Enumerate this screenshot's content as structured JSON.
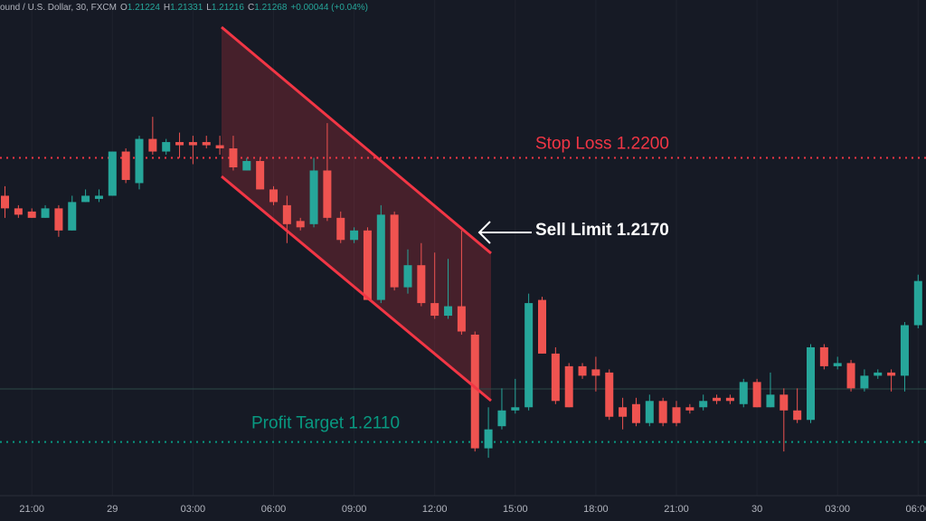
{
  "chart_data": {
    "type": "candlestick",
    "header": {
      "symbol": "ound / U.S. Dollar, 30, FXCM",
      "ohlc": [
        {
          "label": "O",
          "value": 1.21224
        },
        {
          "label": "H",
          "value": 1.21331
        },
        {
          "label": "L",
          "value": 1.21216
        },
        {
          "label": "C",
          "value": 1.21268
        }
      ],
      "change": "+0.00044 (+0.04%)"
    },
    "categories": [
      null,
      null,
      "21:00",
      null,
      null,
      null,
      null,
      null,
      "29",
      null,
      null,
      null,
      null,
      null,
      "03:00",
      null,
      null,
      null,
      null,
      null,
      "06:00",
      null,
      null,
      null,
      null,
      null,
      "09:00",
      null,
      null,
      null,
      null,
      null,
      "12:00",
      null,
      null,
      null,
      null,
      null,
      "15:00",
      null,
      null,
      null,
      null,
      null,
      "18:00",
      null,
      null,
      null,
      null,
      null,
      "21:00",
      null,
      null,
      null,
      null,
      null,
      "30",
      null,
      null,
      null,
      null,
      null,
      "03:00",
      null,
      null,
      null,
      null,
      null,
      "06:00"
    ],
    "open": [
      1.2188,
      1.2184,
      1.2183,
      1.2181,
      1.2184,
      1.2177,
      1.2186,
      1.2187,
      1.2188,
      1.2202,
      1.2192,
      1.2206,
      1.2202,
      1.2205,
      1.2205,
      1.2205,
      1.2204,
      1.2203,
      1.2196,
      1.2199,
      1.219,
      1.2185,
      1.218,
      1.2179,
      1.2196,
      1.2181,
      1.2174,
      1.2177,
      1.2155,
      1.2182,
      1.2159,
      1.2166,
      1.2154,
      1.215,
      1.2153,
      1.2144,
      1.2108,
      1.2115,
      1.212,
      1.2121,
      1.2155,
      1.2138,
      1.2134,
      1.2134,
      1.2133,
      1.2132,
      1.2121,
      1.2122,
      1.2116,
      1.2123,
      1.2121,
      1.2121,
      1.2121,
      1.2124,
      1.2124,
      1.2122,
      1.2129,
      1.2121,
      1.2125,
      1.212,
      1.2117,
      1.214,
      1.2134,
      1.2135,
      1.2127,
      1.2131,
      1.2132,
      1.2131,
      1.2147
    ],
    "high": [
      1.2191,
      1.2185,
      1.2184,
      1.2185,
      1.2185,
      1.2188,
      1.219,
      1.219,
      1.2202,
      1.2203,
      1.2207,
      1.2213,
      1.2206,
      1.2208,
      1.2207,
      1.2207,
      1.2207,
      1.2207,
      1.22,
      1.22,
      1.2191,
      1.2188,
      1.2181,
      1.22,
      1.2211,
      1.2183,
      1.2178,
      1.2178,
      1.2185,
      1.2183,
      1.2171,
      1.2173,
      1.217,
      1.2168,
      1.2177,
      1.2145,
      1.2121,
      1.2127,
      1.213,
      1.2157,
      1.2156,
      1.214,
      1.2135,
      1.2135,
      1.2137,
      1.2133,
      1.2124,
      1.2124,
      1.2125,
      1.2124,
      1.2123,
      1.2122,
      1.2125,
      1.2125,
      1.2125,
      1.213,
      1.213,
      1.2132,
      1.2127,
      1.2127,
      1.2141,
      1.2141,
      1.2137,
      1.2136,
      1.2133,
      1.2133,
      1.2133,
      1.2148,
      1.2163
    ],
    "low": [
      1.2181,
      1.2181,
      1.2181,
      1.2181,
      1.2175,
      1.2177,
      1.2186,
      1.2186,
      1.2188,
      1.2192,
      1.219,
      1.2201,
      1.2201,
      1.22,
      1.2198,
      1.2203,
      1.2201,
      1.2196,
      1.2196,
      1.219,
      1.2185,
      1.2173,
      1.2177,
      1.2178,
      1.218,
      1.2173,
      1.2173,
      1.2155,
      1.2154,
      1.2158,
      1.2157,
      1.2153,
      1.2149,
      1.2149,
      1.2144,
      1.2107,
      1.2105,
      1.2114,
      1.2119,
      1.212,
      1.2138,
      1.2122,
      1.2121,
      1.213,
      1.2126,
      1.2117,
      1.2114,
      1.2115,
      1.2115,
      1.2115,
      1.2115,
      1.2119,
      1.212,
      1.2122,
      1.2122,
      1.2121,
      1.2121,
      1.2121,
      1.2107,
      1.2116,
      1.2116,
      1.2133,
      1.2133,
      1.2126,
      1.2126,
      1.213,
      1.2126,
      1.2126,
      1.2146
    ],
    "close": [
      1.2184,
      1.2182,
      1.2181,
      1.2184,
      1.2177,
      1.2186,
      1.2188,
      1.2188,
      1.2202,
      1.2193,
      1.2206,
      1.2202,
      1.2205,
      1.2204,
      1.2204,
      1.2204,
      1.2203,
      1.2197,
      1.2199,
      1.219,
      1.2186,
      1.2179,
      1.2178,
      1.2196,
      1.2181,
      1.2174,
      1.2177,
      1.2155,
      1.2182,
      1.2159,
      1.2166,
      1.2154,
      1.215,
      1.2153,
      1.2145,
      1.2108,
      1.2114,
      1.212,
      1.2121,
      1.2154,
      1.2138,
      1.2123,
      1.2121,
      1.2131,
      1.2131,
      1.2118,
      1.2118,
      1.2116,
      1.2123,
      1.2116,
      1.2116,
      1.212,
      1.2123,
      1.2123,
      1.2123,
      1.2129,
      1.2121,
      1.2125,
      1.212,
      1.2117,
      1.214,
      1.2134,
      1.2135,
      1.2127,
      1.2131,
      1.2132,
      1.2131,
      1.2147,
      1.2161
    ],
    "up_color": "#26a69a",
    "down_color": "#ef5350",
    "ylim": [
      1.2093,
      1.225
    ],
    "grid": true,
    "levels": [
      {
        "label": "Stop Loss 1.2200",
        "value": 1.22,
        "color": "#f23645"
      },
      {
        "label": "Profit Target 1.2110",
        "value": 1.211,
        "color": "#089981"
      }
    ],
    "sell_limit_label": "Sell Limit 1.2170"
  }
}
